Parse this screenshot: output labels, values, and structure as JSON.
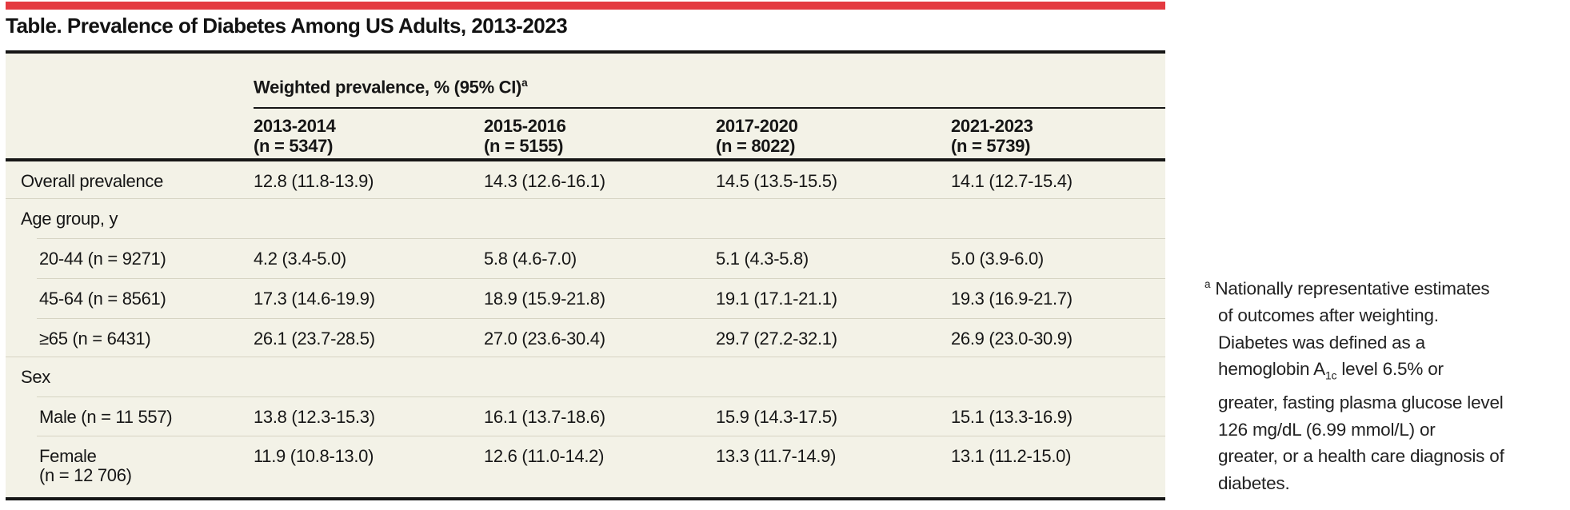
{
  "colors": {
    "brand_red": "#e43a40",
    "table_bg": "#f3f2e7",
    "rule_black": "#161616",
    "separator": "#d6d4c3"
  },
  "title": "Table. Prevalence of Diabetes Among US Adults, 2013-2023",
  "table": {
    "spanner": {
      "label": "Weighted prevalence, % (95% CI)",
      "sup": "a"
    },
    "columns": [
      {
        "period": "2013-2014",
        "n": "(n = 5347)"
      },
      {
        "period": "2015-2016",
        "n": "(n = 5155)"
      },
      {
        "period": "2017-2020",
        "n": "(n = 8022)"
      },
      {
        "period": "2021-2023",
        "n": "(n = 5739)"
      }
    ],
    "rows": [
      {
        "label": "Overall prevalence",
        "type": "data",
        "values": [
          "12.8 (11.8-13.9)",
          "14.3 (12.6-16.1)",
          "14.5 (13.5-15.5)",
          "14.1 (12.7-15.4)"
        ]
      },
      {
        "label": "Age group, y",
        "type": "section",
        "values": [
          "",
          "",
          "",
          ""
        ]
      },
      {
        "label": "20-44 (n = 9271)",
        "type": "data",
        "values": [
          "4.2 (3.4-5.0)",
          "5.8 (4.6-7.0)",
          "5.1 (4.3-5.8)",
          "5.0 (3.9-6.0)"
        ]
      },
      {
        "label": "45-64 (n = 8561)",
        "type": "data",
        "values": [
          "17.3 (14.6-19.9)",
          "18.9 (15.9-21.8)",
          "19.1 (17.1-21.1)",
          "19.3 (16.9-21.7)"
        ]
      },
      {
        "label": "≥65 (n = 6431)",
        "type": "data",
        "values": [
          "26.1 (23.7-28.5)",
          "27.0 (23.6-30.4)",
          "29.7 (27.2-32.1)",
          "26.9 (23.0-30.9)"
        ]
      },
      {
        "label": "Sex",
        "type": "section",
        "values": [
          "",
          "",
          "",
          ""
        ]
      },
      {
        "label": "Male (n = 11 557)",
        "type": "data",
        "values": [
          "13.8 (12.3-15.3)",
          "16.1 (13.7-18.6)",
          "15.9 (14.3-17.5)",
          "15.1 (13.3-16.9)"
        ]
      },
      {
        "label": "Female\n(n = 12 706)",
        "type": "data",
        "values": [
          "11.9 (10.8-13.0)",
          "12.6 (11.0-14.2)",
          "13.3 (11.7-14.9)",
          "13.1 (11.2-15.0)"
        ]
      }
    ]
  },
  "footnote": {
    "marker": "a",
    "text_1": "Nationally representative estimates\nof outcomes after weighting.\nDiabetes was defined as a\nhemoglobin A",
    "sub": "1c",
    "text_2": " level 6.5% or\ngreater, fasting plasma glucose level\n126 mg/dL (6.99 mmol/L) or\ngreater, or a health care diagnosis of\ndiabetes."
  }
}
